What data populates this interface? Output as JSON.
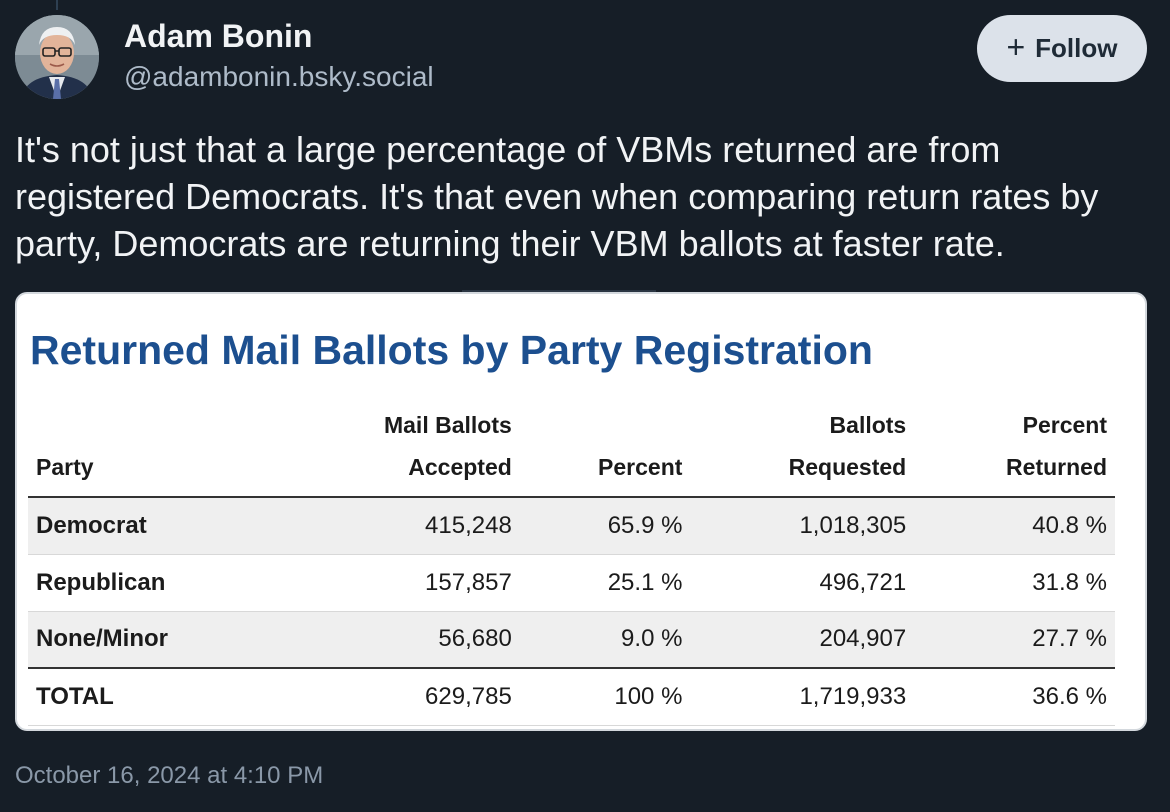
{
  "author": {
    "name": "Adam Bonin",
    "handle": "@adambonin.bsky.social"
  },
  "follow_button": {
    "label": "Follow",
    "icon": "plus-icon"
  },
  "post": {
    "text": "It's not just that a large percentage of VBMs returned are from registered Democrats. It's that even when comparing return rates by party, Democrats are returning their VBM ballots at faster rate.",
    "timestamp": "October 16, 2024 at 4:10 PM"
  },
  "table": {
    "title": "Returned Mail Ballots by Party Registration",
    "headers": [
      {
        "line1": "",
        "line2": "Party"
      },
      {
        "line1": "Mail Ballots",
        "line2": "Accepted"
      },
      {
        "line1": "",
        "line2": "Percent"
      },
      {
        "line1": "Ballots",
        "line2": "Requested"
      },
      {
        "line1": "Percent",
        "line2": "Returned"
      }
    ],
    "rows": [
      [
        "Democrat",
        "415,248",
        "65.9 %",
        "1,018,305",
        "40.8 %"
      ],
      [
        "Republican",
        "157,857",
        "25.1 %",
        "496,721",
        "31.8 %"
      ],
      [
        "None/Minor",
        "56,680",
        "9.0 %",
        "204,907",
        "27.7 %"
      ],
      [
        "TOTAL",
        "629,785",
        "100 %",
        "1,719,933",
        "36.6 %"
      ]
    ]
  },
  "colors": {
    "background": "#161e27",
    "title_blue": "#1c4f8f",
    "follow_bg": "#dce2ea",
    "handle": "#aebbc9"
  }
}
